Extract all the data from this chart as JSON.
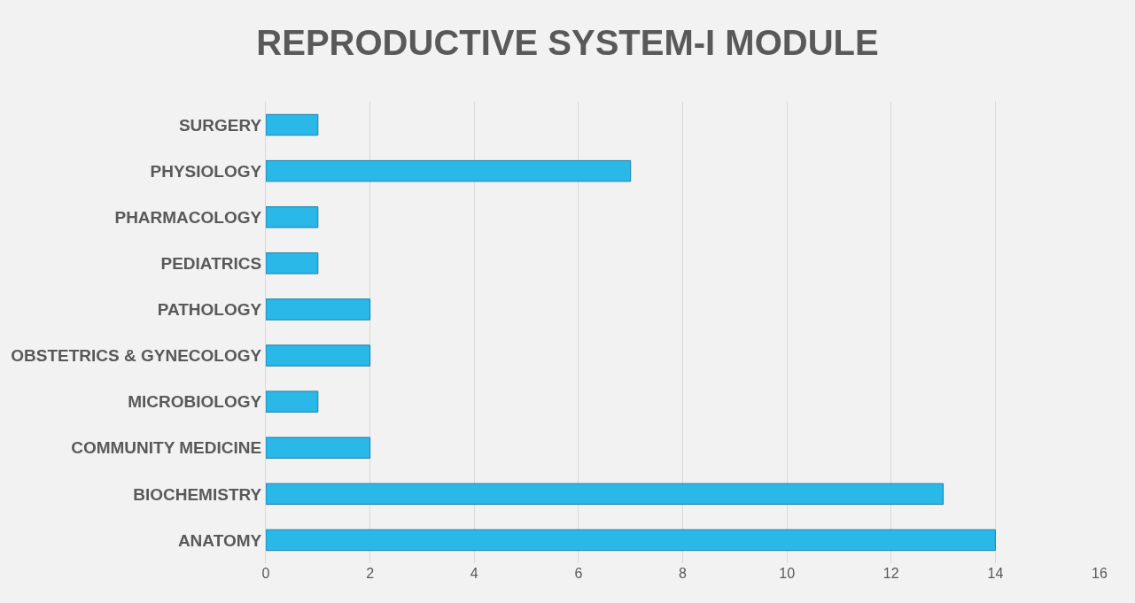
{
  "chart_data": {
    "type": "bar",
    "orientation": "horizontal",
    "title": "REPRODUCTIVE SYSTEM-I MODULE",
    "categories": [
      "SURGERY",
      "PHYSIOLOGY",
      "PHARMACOLOGY",
      "PEDIATRICS",
      "PATHOLOGY",
      "OBSTETRICS & GYNECOLOGY",
      "MICROBIOLOGY",
      "COMMUNITY MEDICINE",
      "BIOCHEMISTRY",
      "ANATOMY"
    ],
    "values": [
      1,
      7,
      1,
      1,
      2,
      2,
      1,
      2,
      13,
      14
    ],
    "color": "#29b8e8",
    "xlim": [
      0,
      16
    ],
    "xticks": [
      0,
      2,
      4,
      6,
      8,
      10,
      12,
      14,
      16
    ],
    "grid": "x"
  }
}
